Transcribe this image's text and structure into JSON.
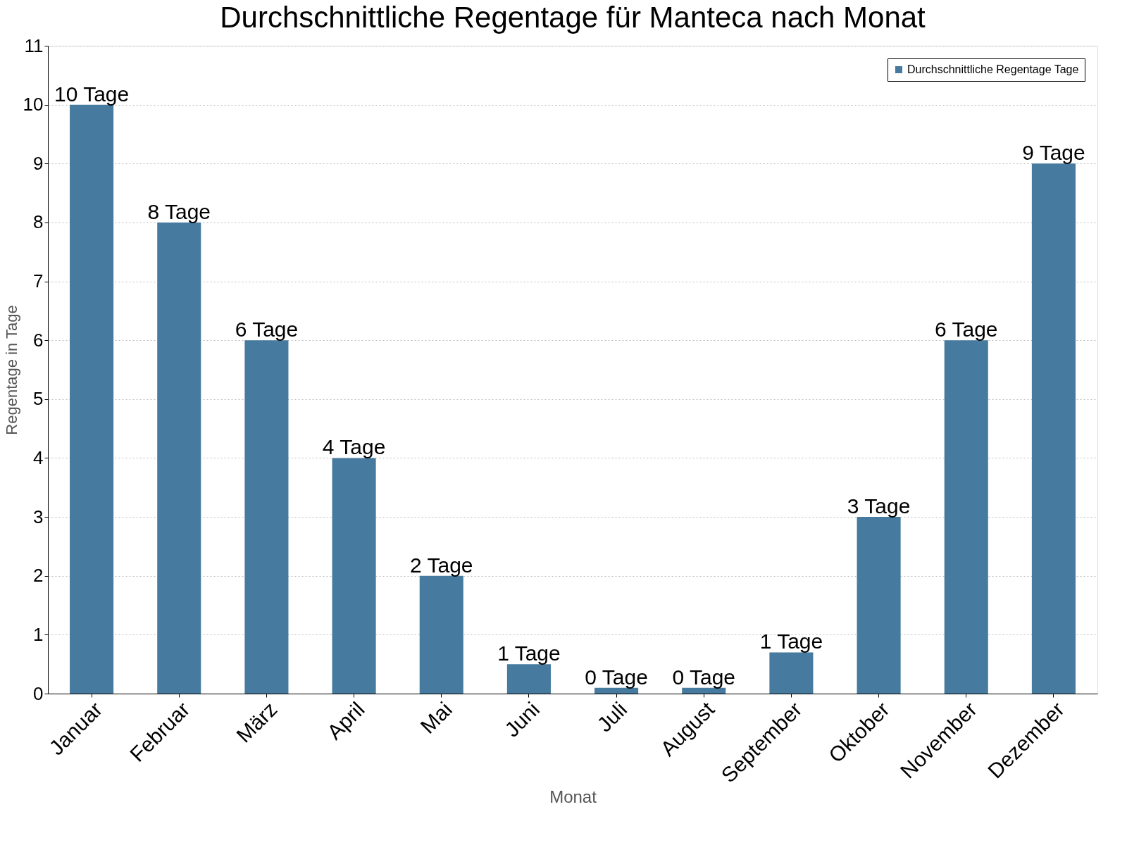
{
  "chart_data": {
    "type": "bar",
    "title": "Durchschnittliche Regentage für Manteca nach Monat",
    "xlabel": "Monat",
    "ylabel": "Regentage in Tage",
    "categories": [
      "Januar",
      "Februar",
      "März",
      "April",
      "Mai",
      "Juni",
      "Juli",
      "August",
      "September",
      "Oktober",
      "November",
      "Dezember"
    ],
    "series": [
      {
        "name": "Durchschnittliche Regentage Tage",
        "color": "#467a9e",
        "values": [
          10,
          8,
          6,
          4,
          2,
          0.5,
          0.1,
          0.1,
          0.7,
          3,
          6,
          9
        ],
        "value_labels": [
          "10 Tage",
          "8 Tage",
          "6 Tage",
          "4 Tage",
          "2 Tage",
          "1 Tage",
          "0 Tage",
          "0 Tage",
          "1 Tage",
          "3 Tage",
          "6 Tage",
          "9 Tage"
        ]
      }
    ],
    "ylim": [
      0,
      11
    ],
    "yticks": [
      0,
      1,
      2,
      3,
      4,
      5,
      6,
      7,
      8,
      9,
      10,
      11
    ],
    "grid": "y",
    "legend": "top right"
  }
}
